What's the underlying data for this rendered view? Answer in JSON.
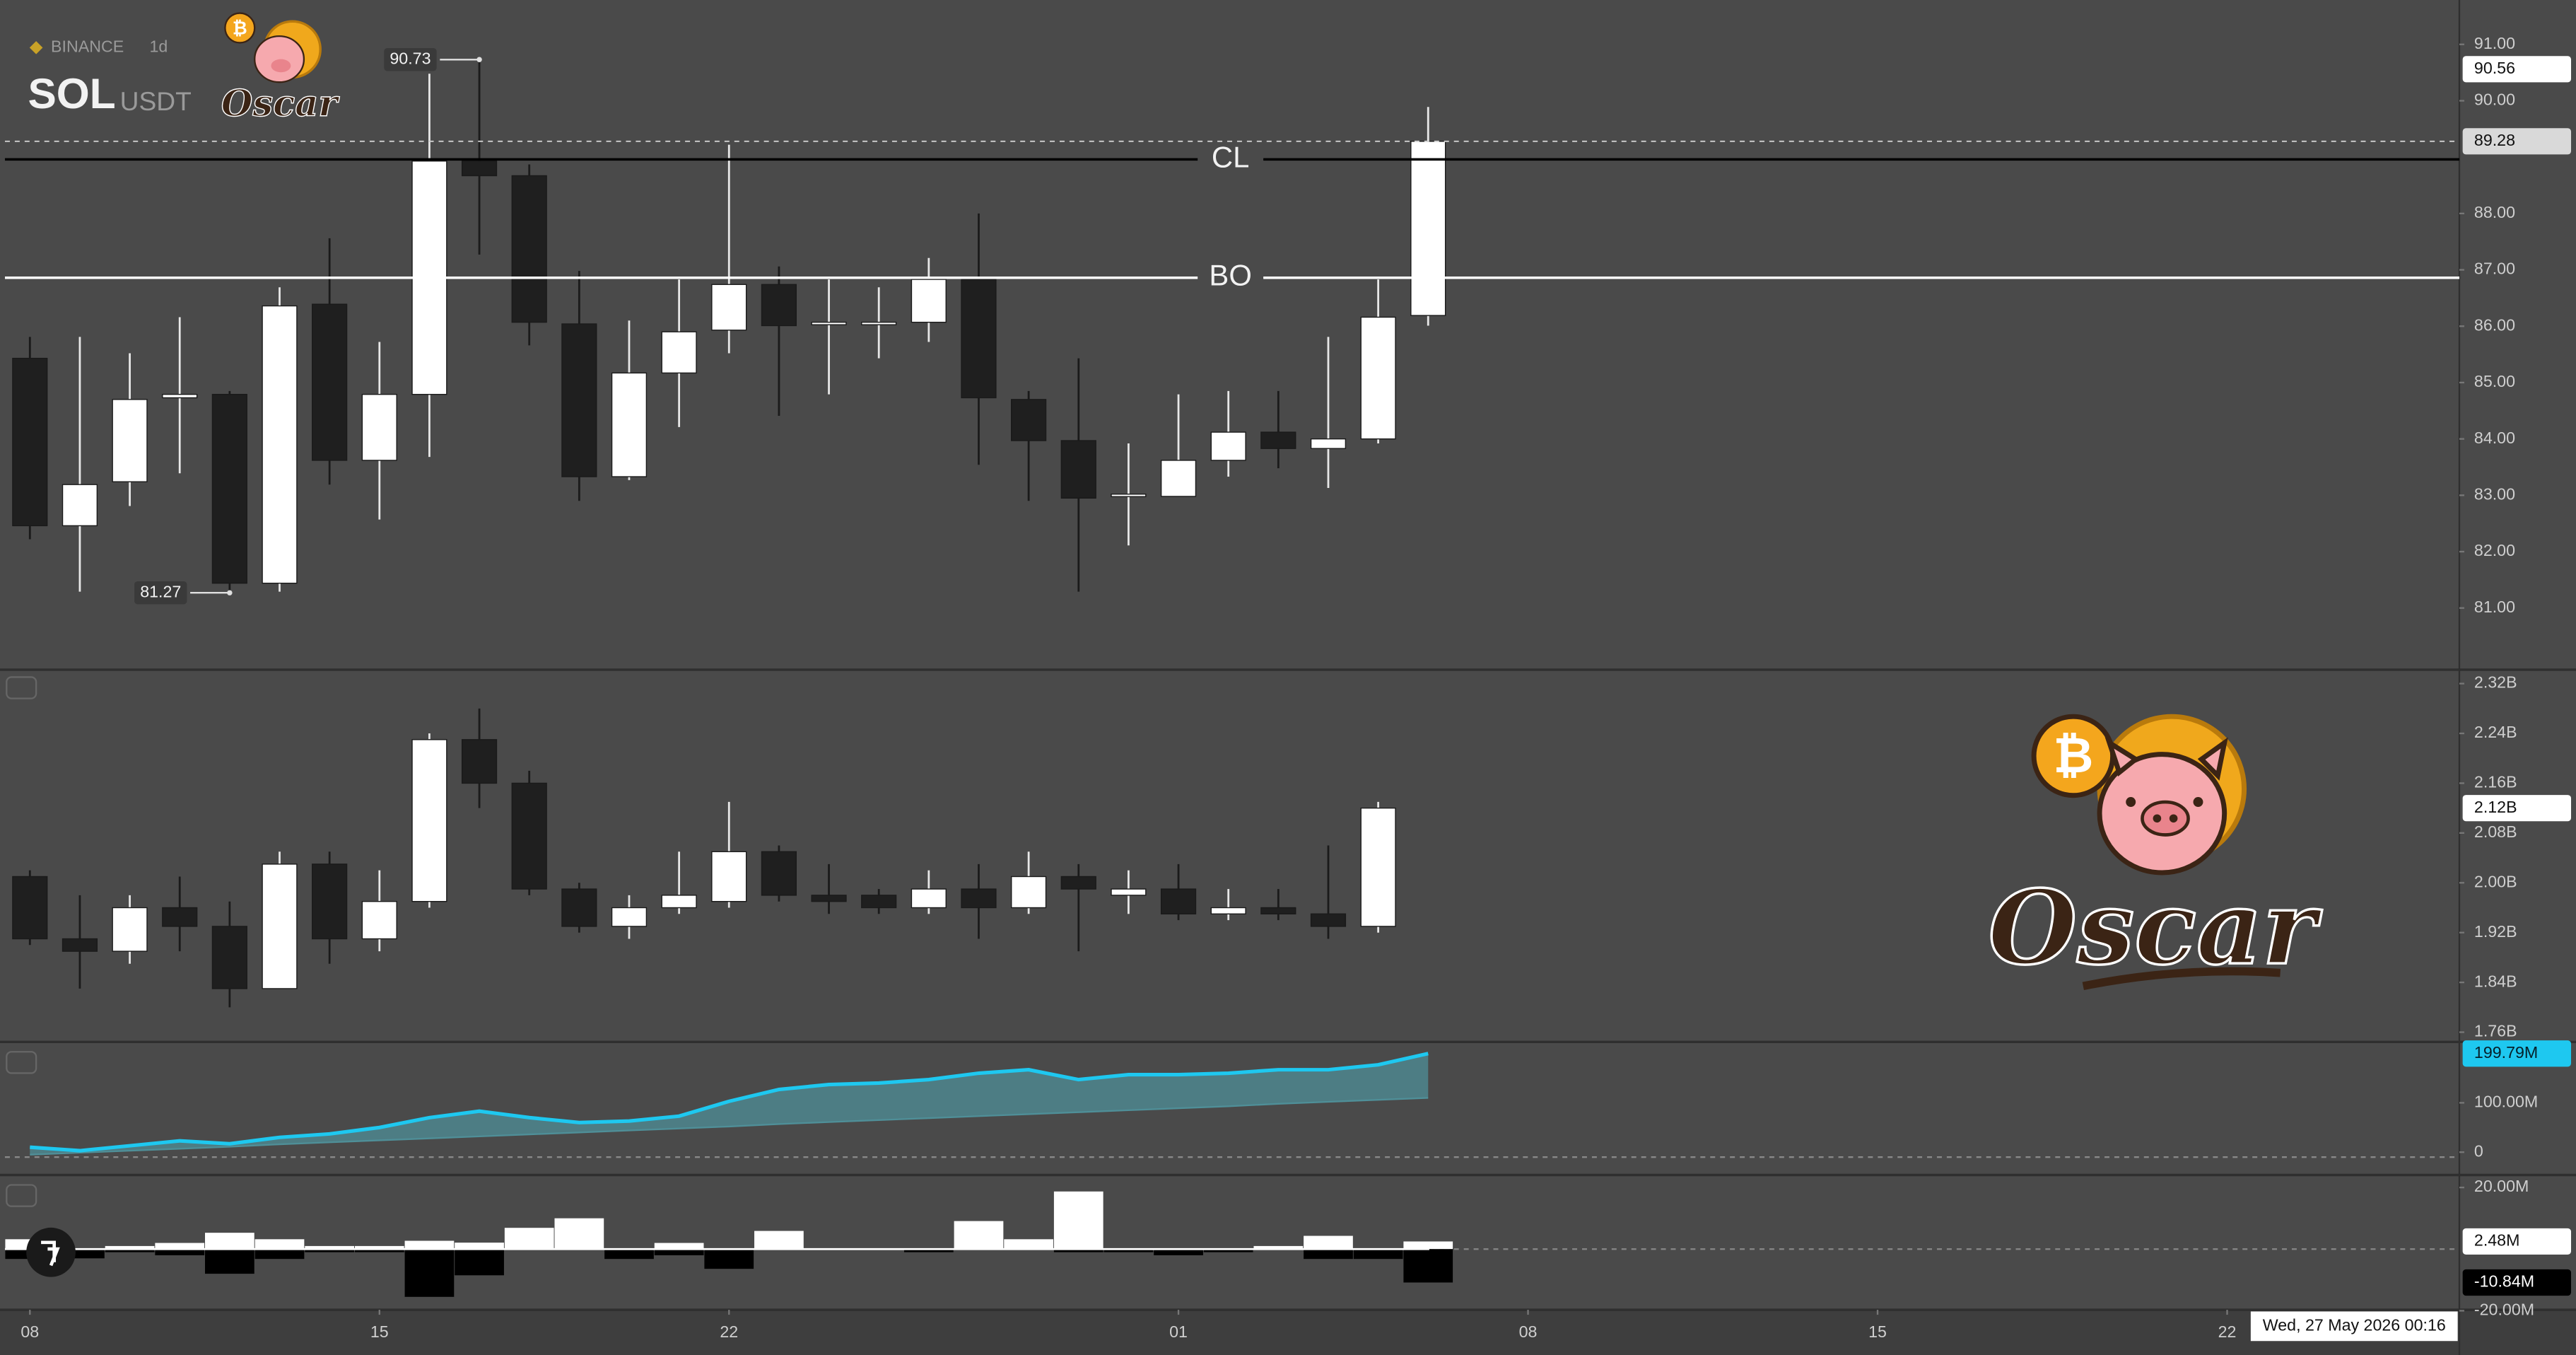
{
  "header": {
    "exchange": "BINANCE",
    "interval": "1d",
    "symbol": "SOL",
    "quote": "USDT",
    "logo_text": "Oscar"
  },
  "watermark": {
    "text": "Oscar"
  },
  "crosshair_label": "Wed, 27 May 2026 00:16",
  "chart_data": [
    {
      "type": "candlestick",
      "x": [
        0,
        1,
        2,
        3,
        4,
        5,
        6,
        7,
        8,
        9,
        10,
        11,
        12,
        13,
        14,
        15,
        16,
        17,
        18,
        19,
        20,
        21,
        22,
        23,
        24,
        25,
        26,
        27,
        28
      ],
      "open": [
        85.43,
        82.46,
        83.24,
        84.73,
        84.79,
        81.44,
        86.39,
        83.62,
        84.79,
        88.93,
        88.67,
        86.04,
        83.33,
        85.17,
        85.93,
        86.74,
        86.04,
        86.04,
        86.07,
        86.83,
        84.7,
        83.97,
        82.99,
        82.98,
        83.62,
        84.12,
        83.83,
        84.0,
        86.19
      ],
      "high": [
        85.81,
        85.81,
        85.52,
        86.16,
        84.85,
        86.69,
        87.56,
        85.72,
        90.48,
        90.73,
        88.87,
        86.98,
        86.1,
        86.83,
        89.22,
        87.06,
        86.83,
        86.69,
        87.21,
        88.0,
        84.85,
        85.43,
        83.92,
        84.79,
        84.85,
        84.85,
        85.81,
        86.83,
        89.89
      ],
      "low": [
        82.22,
        81.29,
        82.81,
        83.39,
        81.27,
        81.29,
        83.19,
        82.57,
        83.68,
        87.27,
        85.66,
        82.9,
        83.27,
        84.21,
        85.52,
        84.41,
        84.79,
        85.43,
        85.72,
        83.54,
        82.9,
        81.29,
        82.11,
        82.98,
        83.33,
        83.48,
        83.13,
        83.92,
        86.01
      ],
      "close": [
        82.46,
        83.19,
        84.7,
        84.79,
        81.44,
        86.36,
        83.62,
        84.79,
        88.93,
        88.67,
        86.07,
        83.33,
        85.17,
        85.9,
        86.74,
        86.01,
        86.07,
        86.07,
        86.83,
        84.73,
        83.97,
        82.95,
        83.02,
        83.62,
        84.12,
        83.83,
        84.0,
        86.16,
        89.28
      ],
      "up_color": "#ffffff",
      "down_color": "#1f1f1f",
      "xlim": [
        -0.5,
        48.65
      ],
      "xticks": [
        {
          "value": 0,
          "label": "08"
        },
        {
          "value": 7,
          "label": "15"
        },
        {
          "value": 14,
          "label": "22"
        },
        {
          "value": 23,
          "label": "01"
        },
        {
          "value": 30,
          "label": "08"
        },
        {
          "value": 37,
          "label": "15"
        },
        {
          "value": 44,
          "label": "22"
        }
      ],
      "ylim": [
        79.92,
        91.7
      ],
      "yticks": [
        {
          "value": 81,
          "label": "81.00"
        },
        {
          "value": 82,
          "label": "82.00"
        },
        {
          "value": 83,
          "label": "83.00"
        },
        {
          "value": 84,
          "label": "84.00"
        },
        {
          "value": 85,
          "label": "85.00"
        },
        {
          "value": 86,
          "label": "86.00"
        },
        {
          "value": 87,
          "label": "87.00"
        },
        {
          "value": 88,
          "label": "88.00"
        },
        {
          "value": 90,
          "label": "90.00"
        },
        {
          "value": 91,
          "label": "91.00"
        }
      ],
      "hlines": [
        {
          "label": "CL",
          "value": 88.96,
          "color": "#000000"
        },
        {
          "label": "BO",
          "value": 86.86,
          "color": "#ffffff"
        }
      ],
      "extreme_labels": [
        {
          "value": 90.73,
          "x": 9
        },
        {
          "value": 81.27,
          "x": 4
        }
      ],
      "price_labels": [
        90.56,
        89.28
      ],
      "price_label_colors": [
        "#ffffff",
        "#d9d9d9"
      ]
    },
    {
      "type": "candlestick",
      "x": [
        0,
        1,
        2,
        3,
        4,
        5,
        6,
        7,
        8,
        9,
        10,
        11,
        12,
        13,
        14,
        15,
        16,
        17,
        18,
        19,
        20,
        21,
        22,
        23,
        24,
        25,
        26,
        27
      ],
      "open": [
        2.01,
        1.91,
        1.89,
        1.96,
        1.93,
        1.83,
        2.03,
        1.91,
        1.97,
        2.23,
        2.16,
        1.99,
        1.93,
        1.96,
        1.97,
        2.05,
        1.98,
        1.98,
        1.96,
        1.99,
        1.96,
        2.01,
        1.98,
        1.99,
        1.95,
        1.96,
        1.95,
        1.93
      ],
      "high": [
        2.02,
        1.98,
        1.98,
        2.01,
        1.97,
        2.05,
        2.05,
        2.02,
        2.24,
        2.28,
        2.18,
        2.0,
        1.98,
        2.05,
        2.13,
        2.06,
        2.03,
        1.99,
        2.02,
        2.03,
        2.05,
        2.03,
        2.02,
        2.03,
        1.99,
        1.99,
        2.06,
        2.13
      ],
      "low": [
        1.9,
        1.83,
        1.87,
        1.89,
        1.8,
        1.83,
        1.87,
        1.89,
        1.96,
        2.12,
        1.98,
        1.92,
        1.91,
        1.95,
        1.96,
        1.97,
        1.95,
        1.95,
        1.95,
        1.91,
        1.95,
        1.89,
        1.95,
        1.94,
        1.94,
        1.94,
        1.91,
        1.92
      ],
      "close": [
        1.91,
        1.89,
        1.96,
        1.93,
        1.83,
        2.03,
        1.91,
        1.97,
        2.23,
        2.16,
        1.99,
        1.93,
        1.96,
        1.98,
        2.05,
        1.98,
        1.97,
        1.96,
        1.99,
        1.96,
        2.01,
        1.99,
        1.99,
        1.95,
        1.96,
        1.95,
        1.93,
        2.12
      ],
      "up_color": "#ffffff",
      "down_color": "#1f1f1f",
      "ylim": [
        1.747,
        2.341
      ],
      "yticks": [
        {
          "value": 2.32,
          "label": "2.32B"
        },
        {
          "value": 2.24,
          "label": "2.24B"
        },
        {
          "value": 2.16,
          "label": "2.16B"
        },
        {
          "value": 2.08,
          "label": "2.08B"
        },
        {
          "value": 2.0,
          "label": "2.00B"
        },
        {
          "value": 1.92,
          "label": "1.92B"
        },
        {
          "value": 1.84,
          "label": "1.84B"
        },
        {
          "value": 1.76,
          "label": "1.76B"
        }
      ],
      "current_labels": [
        {
          "value": 2.12,
          "label": "2.12B"
        }
      ]
    },
    {
      "type": "area",
      "x": [
        0,
        1,
        2,
        3,
        4,
        5,
        6,
        7,
        8,
        9,
        10,
        11,
        12,
        13,
        14,
        15,
        16,
        17,
        18,
        19,
        20,
        21,
        22,
        23,
        24,
        25,
        26,
        27,
        28
      ],
      "series": [
        {
          "color": "#1ec8f0",
          "values": [
            10,
            3,
            13,
            23,
            17,
            30,
            37,
            50,
            70,
            83,
            70,
            60,
            63,
            73,
            103,
            127,
            137,
            140,
            147,
            160,
            167,
            147,
            157,
            157,
            160,
            167,
            167,
            177,
            199.79
          ]
        },
        {
          "color": "#4f8f98",
          "values": [
            -5,
            -1,
            3,
            7,
            11,
            16,
            20,
            24,
            28,
            32,
            36,
            40,
            44,
            48,
            52,
            57,
            61,
            65,
            69,
            73,
            77,
            81,
            85,
            89,
            93,
            98,
            102,
            106,
            110
          ]
        }
      ],
      "ylim": [
        -43,
        220
      ],
      "yticks": [
        {
          "value": 100,
          "label": "100.00M"
        },
        0
      ],
      "current_labels": [
        {
          "value": 199.79,
          "label": "199.79M"
        }
      ]
    },
    {
      "type": "histogram",
      "x": [
        0,
        1,
        2,
        3,
        4,
        5,
        6,
        7,
        8,
        9,
        10,
        11,
        12,
        13,
        14,
        15,
        16,
        17,
        18,
        19,
        20,
        21,
        22,
        23,
        24,
        25,
        26,
        27,
        28
      ],
      "series": [
        {
          "color": "#ffffff",
          "values": [
            3.2,
            0,
            1,
            2,
            5.3,
            3.2,
            1,
            1,
            2.7,
            2.1,
            6.9,
            10,
            0,
            2,
            0,
            5.9,
            0,
            0,
            0,
            9.1,
            3.2,
            18.7,
            0,
            0,
            0,
            1,
            4.3,
            0,
            2.48
          ]
        },
        {
          "color": "#000000",
          "values": [
            -3.2,
            -3,
            -1,
            -2,
            -8,
            -3.2,
            -1,
            -1,
            -15.5,
            -8.5,
            0,
            0,
            -3.2,
            -2,
            -6.4,
            0,
            0,
            0,
            -1,
            0,
            0,
            -1,
            -1,
            -2,
            -1,
            0,
            -3.2,
            -3.2,
            -10.84
          ]
        }
      ],
      "ylim": [
        -19.7,
        23.5
      ],
      "yticks": [
        {
          "value": 20,
          "label": "20.00M"
        },
        {
          "value": -20,
          "label": "-20.00M"
        }
      ],
      "current_labels": [
        {
          "value": 2.48,
          "label": "2.48M"
        },
        {
          "value": -10.84,
          "label": "-10.84M"
        }
      ]
    }
  ]
}
